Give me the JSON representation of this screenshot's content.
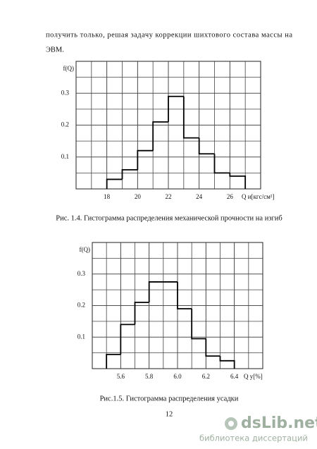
{
  "text": {
    "lines": [
      "получить только, решая задачу коррекции шихтового состава массы на",
      "ЭВМ."
    ]
  },
  "chart_data": [
    {
      "type": "histogram",
      "ylabel": "f(Q)",
      "xlabel": "Q и[кгс/см²]",
      "caption": "Рис. 1.4. Гистограмма распределения механической прочности на изгиб",
      "bins": [
        18,
        19,
        20,
        21,
        22,
        23,
        24,
        25,
        26,
        27
      ],
      "values": [
        0.03,
        0.06,
        0.12,
        0.21,
        0.29,
        0.16,
        0.11,
        0.05,
        0.04
      ],
      "xlim": [
        16,
        28
      ],
      "ylim": [
        0,
        0.4
      ],
      "xticks": [
        18,
        20,
        22,
        24,
        26
      ],
      "yticks": [
        0.1,
        0.2,
        0.3
      ],
      "grid": true,
      "color": "#000000"
    },
    {
      "type": "histogram",
      "ylabel": "f(Q)",
      "xlabel": "Q у[%]",
      "caption": "Рис.1.5. Гистограмма распределения усадки",
      "bins": [
        5.5,
        5.6,
        5.7,
        5.8,
        5.9,
        6.0,
        6.1,
        6.2,
        6.3,
        6.4
      ],
      "values": [
        0.045,
        0.14,
        0.21,
        0.275,
        0.275,
        0.19,
        0.095,
        0.04,
        0.025
      ],
      "xlim": [
        5.4,
        6.6
      ],
      "ylim": [
        0,
        0.4
      ],
      "xticks": [
        5.6,
        5.8,
        {
          "value": 6,
          "label": "6.0"
        },
        6.2,
        6.4
      ],
      "yticks": [
        0.1,
        0.2,
        0.3
      ],
      "grid": true,
      "color": "#000000"
    }
  ],
  "page_number": "12",
  "watermark": {
    "brand": "dsLib.net",
    "tagline": "библиотека диссертаций"
  }
}
